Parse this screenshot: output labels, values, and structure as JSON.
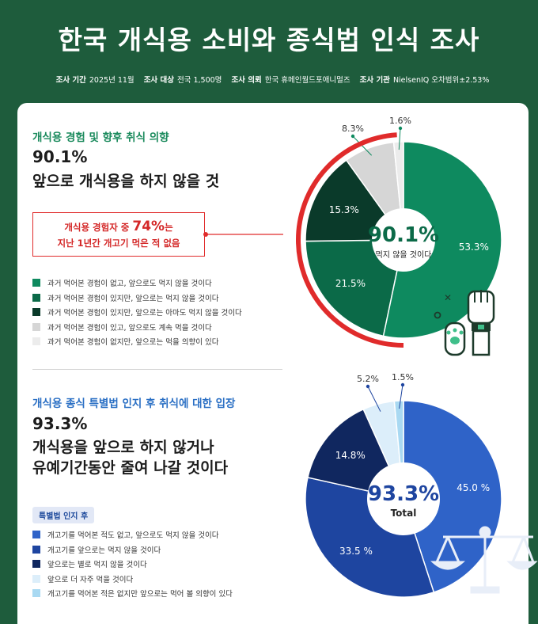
{
  "title": "한국 개식용 소비와 종식법 인식 조사",
  "meta": [
    {
      "label": "조사 기간",
      "value": "2025년 11월"
    },
    {
      "label": "조사 대상",
      "value": "전국 1,500명"
    },
    {
      "label": "조사 의뢰",
      "value": "한국 휴메인월드포애니멀즈"
    },
    {
      "label": "조사 기관",
      "value": "NielsenIQ 오차범위±2.53%"
    }
  ],
  "section1": {
    "heading": "개식용 경험 및 향후 취식 의향",
    "big_number": "90.1%",
    "big_text": "앞으로 개식용을 하지 않을 것",
    "callout_pre": "개식용 경험자 중 ",
    "callout_highlight": "74%",
    "callout_post": "는",
    "callout_line2": "지난 1년간 개고기 먹은 적 없음",
    "legend": [
      {
        "label": "과거 먹어본 경험이 없고, 앞으로도 먹지 않을 것이다",
        "color": "#0e8a5f"
      },
      {
        "label": "과거 먹어본 경험이 있지만, 앞으로는 먹지 않을 것이다",
        "color": "#0b6a48"
      },
      {
        "label": "과거 먹어본 경험이 있지만, 앞으로는 아마도 먹지 않을 것이다",
        "color": "#0a3a2a"
      },
      {
        "label": "과거 먹어본 경험이 있고, 앞으로도 계속 먹을 것이다",
        "color": "#d6d6d6"
      },
      {
        "label": "과거 먹어본 경험이 없지만, 앞으로는 먹을 의향이 있다",
        "color": "#ececec"
      }
    ],
    "center_value": "90.1%",
    "center_label": "먹지 않을 것이다"
  },
  "section2": {
    "heading": "개식용 종식 특별법 인지 후 취식에 대한 입장",
    "big_number": "93.3%",
    "big_text_line1": "개식용을 앞으로 하지 않거나",
    "big_text_line2": "유예기간동안 줄여 나갈 것이다",
    "badge": "특별법 인지 후",
    "legend": [
      {
        "label": "개고기를 먹어본 적도 없고, 앞으로도 먹지 않을 것이다",
        "color": "#2f63c8"
      },
      {
        "label": "개고기를 앞으로는 먹지 않을 것이다",
        "color": "#1e45a0"
      },
      {
        "label": "앞으로는 별로 먹지 않을 것이다",
        "color": "#10275f"
      },
      {
        "label": "앞으로 더 자주 먹을 것이다",
        "color": "#dceefa"
      },
      {
        "label": "개고기를 먹어본 적은 없지만 앞으로는 먹어 볼 의향이 있다",
        "color": "#a9d9f2"
      }
    ],
    "center_value": "93.3%",
    "center_label": "Total"
  },
  "chart_data": [
    {
      "type": "pie",
      "title": "개식용 경험 및 향후 취식 의향",
      "categories": [
        "과거 먹어본 경험이 없고, 앞으로도 먹지 않을 것이다",
        "과거 먹어본 경험이 있지만, 앞으로는 먹지 않을 것이다",
        "과거 먹어본 경험이 있지만, 앞으로는 아마도 먹지 않을 것이다",
        "과거 먹어본 경험이 있고, 앞으로도 계속 먹을 것이다",
        "과거 먹어본 경험이 없지만, 앞으로는 먹을 의향이 있다"
      ],
      "values": [
        53.3,
        21.5,
        15.3,
        8.3,
        1.6
      ],
      "value_labels": [
        "53.3%",
        "21.5%",
        "15.3%",
        "8.3%",
        "1.6%"
      ],
      "colors": [
        "#0e8a5f",
        "#0b6a48",
        "#0a3a2a",
        "#d6d6d6",
        "#ececec"
      ],
      "highlight_total": "90.1%"
    },
    {
      "type": "pie",
      "title": "개식용 종식 특별법 인지 후 취식에 대한 입장",
      "categories": [
        "개고기를 먹어본 적도 없고, 앞으로도 먹지 않을 것이다",
        "개고기를 앞으로는 먹지 않을 것이다",
        "앞으로는 별로 먹지 않을 것이다",
        "앞으로 더 자주 먹을 것이다",
        "개고기를 먹어본 적은 없지만 앞으로는 먹어 볼 의향이 있다"
      ],
      "values": [
        45.0,
        33.5,
        14.8,
        5.2,
        1.5
      ],
      "value_labels": [
        "45.0 %",
        "33.5 %",
        "14.8%",
        "5.2%",
        "1.5%"
      ],
      "colors": [
        "#2f63c8",
        "#1e45a0",
        "#10275f",
        "#dceefa",
        "#a9d9f2"
      ],
      "highlight_total": "93.3%"
    }
  ]
}
